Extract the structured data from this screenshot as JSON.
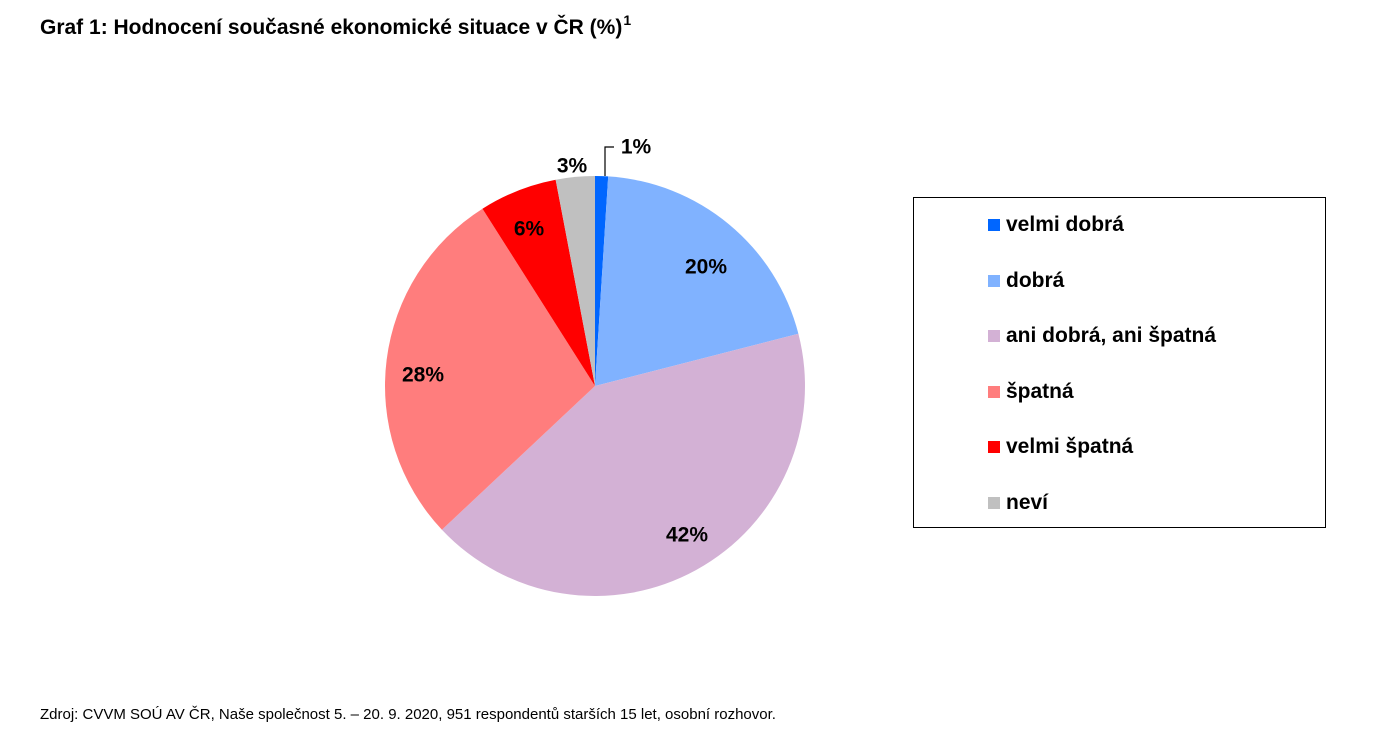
{
  "chart_data": {
    "type": "pie",
    "title": "Graf 1: Hodnocení současné ekonomické situace v ČR (%)",
    "title_footnote": "1",
    "slices": [
      {
        "name": "velmi dobrá",
        "value": 1,
        "label": "1%",
        "color": "#0066ff"
      },
      {
        "name": "dobrá",
        "value": 20,
        "label": "20%",
        "color": "#80b2ff"
      },
      {
        "name": "ani dobrá, ani špatná",
        "value": 42,
        "label": "42%",
        "color": "#d3b1d5"
      },
      {
        "name": "špatná",
        "value": 28,
        "label": "28%",
        "color": "#ff7d7d"
      },
      {
        "name": "velmi špatná",
        "value": 6,
        "label": "6%",
        "color": "#ff0000"
      },
      {
        "name": "neví",
        "value": 3,
        "label": "3%",
        "color": "#c0c0c0"
      }
    ],
    "legend_position": "right"
  },
  "source": "Zdroj: CVVM SOÚ AV ČR, Naše společnost 5. – 20. 9. 2020, 951 respondentů starších 15 let, osobní rozhovor."
}
